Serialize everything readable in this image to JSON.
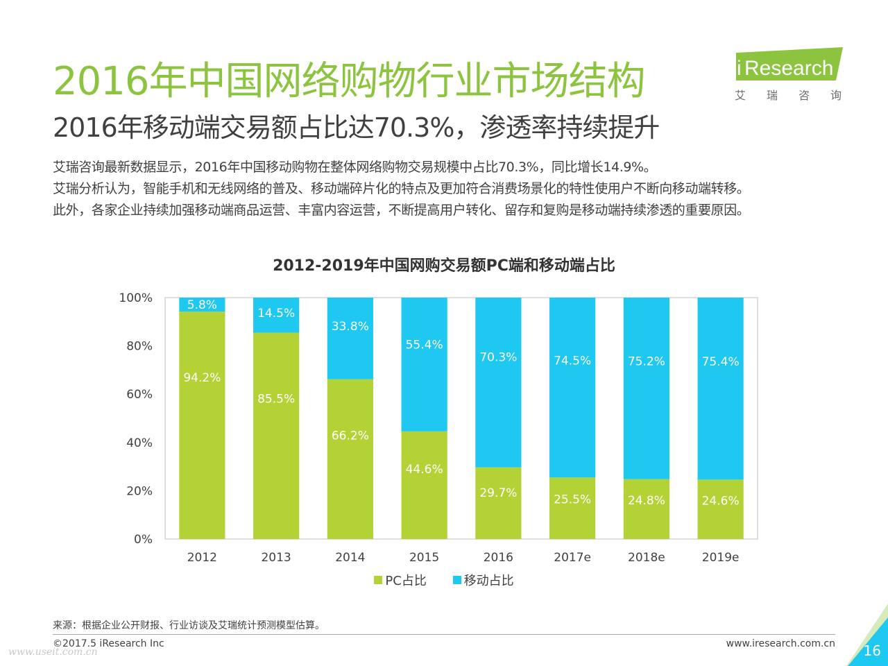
{
  "slide": {
    "title": "2016年中国网络购物行业市场结构",
    "subtitle": "2016年移动端交易额占比达70.3%，渗透率持续提升",
    "paragraphs": [
      "艾瑞咨询最新数据显示，2016年中国移动购物在整体网络购物交易规模中占比70.3%，同比增长14.9%。",
      "艾瑞分析认为，智能手机和无线网络的普及、移动端碎片化的特点及更加符合消费场景化的特性使用户不断向移动端转移。",
      "此外，各家企业持续加强移动端商品运营、丰富内容运营，不断提高用户转化、留存和复购是移动端持续渗透的重要原因。"
    ],
    "source": "来源：根据企业公开财报、行业访谈及艾瑞统计预测模型估算。",
    "copyright": "©2017.5 iResearch Inc",
    "website": "www.iresearch.com.cn",
    "page_number": "16",
    "watermark": "www.useit.com.cn"
  },
  "logo": {
    "brand_i": "i",
    "brand_rest": "Research",
    "chinese": [
      "艾",
      "瑞",
      "咨",
      "询"
    ],
    "color": "#8dc43f"
  },
  "colors": {
    "pc": "#b2d235",
    "mobile": "#1fc8f0",
    "accent": "#8dc43f",
    "corner": "#1fc8f0"
  },
  "chart_data": {
    "type": "bar",
    "stacked": true,
    "title": "2012-2019年中国网购交易额PC端和移动端占比",
    "categories": [
      "2012",
      "2013",
      "2014",
      "2015",
      "2016",
      "2017e",
      "2018e",
      "2019e"
    ],
    "series": [
      {
        "name": "PC占比",
        "values": [
          94.2,
          85.5,
          66.2,
          44.6,
          29.7,
          25.5,
          24.8,
          24.6
        ],
        "labels": [
          "94.2%",
          "85.5%",
          "66.2%",
          "44.6%",
          "29.7%",
          "25.5%",
          "24.8%",
          "24.6%"
        ],
        "color": "#b2d235"
      },
      {
        "name": "移动占比",
        "values": [
          5.8,
          14.5,
          33.8,
          55.4,
          70.3,
          74.5,
          75.2,
          75.4
        ],
        "labels": [
          "5.8%",
          "14.5%",
          "33.8%",
          "55.4%",
          "70.3%",
          "74.5%",
          "75.2%",
          "75.4%"
        ],
        "color": "#1fc8f0"
      }
    ],
    "ylim": [
      0,
      100
    ],
    "yticks": [
      "0%",
      "20%",
      "40%",
      "60%",
      "80%",
      "100%"
    ],
    "legend": "bottom",
    "grid": false
  }
}
